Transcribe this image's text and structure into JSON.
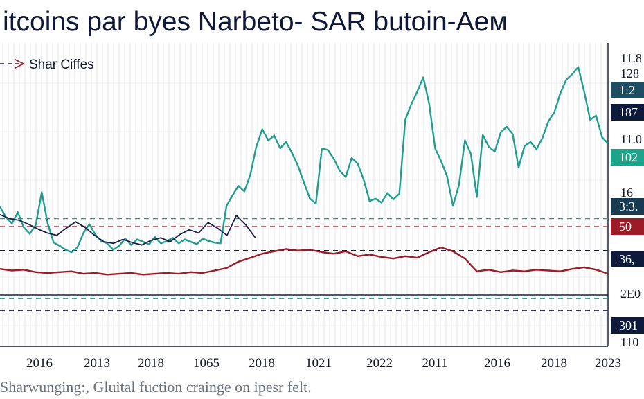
{
  "chart_data": {
    "type": "line",
    "title": "itcoins par byes Narbeto- SAR butoin-Aeм",
    "footnote": "Sharwunging:, Gluital fuction craingе on ipesr felt.",
    "legend": {
      "label": "Shar Ciffes",
      "placement": "top-left"
    },
    "x_tick_labels": [
      "2016",
      "2013",
      "2018",
      "1065",
      "2018",
      "1021",
      "2022",
      "2011",
      "2016",
      "2018",
      "2023"
    ],
    "right_axis_labels": [
      "11.8",
      "128",
      "11.0",
      "16",
      "2E0",
      "110"
    ],
    "right_tags": [
      {
        "text": "1:2",
        "bg": "#1f4e63",
        "fg": "#ffffff"
      },
      {
        "text": "187",
        "bg": "#0d1a3a",
        "fg": "#ffffff"
      },
      {
        "text": "102",
        "bg": "#1fa48c",
        "fg": "#ffffff"
      },
      {
        "text": "3:3.",
        "bg": "#173a50",
        "fg": "#ffffff"
      },
      {
        "text": "50",
        "bg": "#9b1c27",
        "fg": "#ffffff"
      },
      {
        "text": "36,",
        "bg": "#0d1a3a",
        "fg": "#ffffff"
      },
      {
        "text": "301",
        "bg": "#0d1a3a",
        "fg": "#ffffff"
      }
    ],
    "colors": {
      "teal": "#1f9e8f",
      "navy": "#1a1d4a",
      "red": "#9b1c27",
      "grid": "#e4e6ea"
    },
    "reference_lines": [
      {
        "value": 16.0,
        "style": "dashed",
        "color": "#1f9e8f"
      },
      {
        "value": 15.0,
        "style": "dashed",
        "color": "#9b1c27"
      },
      {
        "value": 12.0,
        "style": "dashed",
        "color": "#1a1d4a"
      },
      {
        "value": 6.0,
        "style": "dashed",
        "color": "#1f9e8f"
      },
      {
        "value": 4.5,
        "style": "dashed",
        "color": "#1a1d4a"
      }
    ],
    "series": [
      {
        "color": "#1f9e8f",
        "values": [
          17.5,
          16.2,
          15.4,
          16.8,
          14.9,
          14.1,
          15.2,
          19.3,
          15.4,
          13.0,
          12.6,
          12.1,
          11.8,
          12.4,
          14.2,
          15.3,
          14.0,
          13.2,
          12.9,
          12.1,
          12.6,
          13.5,
          12.7,
          13.4,
          13.1,
          12.8,
          13.7,
          12.9,
          13.2,
          13.6,
          12.9,
          13.4,
          13.1,
          12.8,
          13.5,
          13.2,
          13.0,
          12.9,
          17.6,
          18.9,
          20.1,
          19.4,
          21.5,
          25.0,
          27.2,
          25.8,
          26.4,
          24.8,
          25.6,
          24.2,
          22.6,
          20.5,
          18.5,
          17.9,
          24.8,
          24.6,
          23.5,
          22.0,
          21.2,
          23.6,
          22.9,
          20.9,
          18.2,
          18.5,
          18.0,
          19.2,
          18.4,
          19.1,
          28.4,
          30.3,
          31.9,
          33.7,
          30.4,
          24.8,
          23.2,
          21.3,
          17.6,
          20.2,
          25.8,
          24.1,
          18.7,
          26.5,
          25.0,
          24.4,
          26.8,
          27.5,
          26.6,
          22.4,
          25.1,
          25.6,
          24.7,
          26.1,
          28.2,
          29.3,
          31.7,
          33.4,
          34.1,
          35.0,
          31.9,
          28.4,
          28.9,
          26.2,
          25.4
        ],
        "x_range": [
          0,
          1
        ]
      },
      {
        "color": "#1a1d4a",
        "values": [
          16.5,
          16.0,
          15.8,
          15.3,
          14.7,
          14.2,
          13.9,
          14.8,
          15.6,
          14.9,
          13.9,
          13.1,
          12.9,
          13.4,
          13.0,
          12.7,
          13.3,
          13.6,
          13.1,
          14.0,
          14.6,
          14.2,
          15.5,
          14.8,
          13.9,
          16.4,
          15.2,
          13.6
        ],
        "x_range": [
          0,
          0.42
        ]
      },
      {
        "color": "#9b1c27",
        "values": [
          9.7,
          9.5,
          9.6,
          9.3,
          9.2,
          9.3,
          9.4,
          9.1,
          9.2,
          9.0,
          9.1,
          9.2,
          9.0,
          9.1,
          9.2,
          9.1,
          9.3,
          9.2,
          9.5,
          9.8,
          10.6,
          11.1,
          11.6,
          11.9,
          12.2,
          12.0,
          12.1,
          11.8,
          11.6,
          11.9,
          11.3,
          11.5,
          11.2,
          11.0,
          11.3,
          11.1,
          11.8,
          12.4,
          11.9,
          11.0,
          9.4,
          9.6,
          9.3,
          9.5,
          9.4,
          9.6,
          9.5,
          9.4,
          9.7,
          9.9,
          9.6,
          9.1
        ],
        "x_range": [
          0,
          1
        ]
      }
    ]
  }
}
